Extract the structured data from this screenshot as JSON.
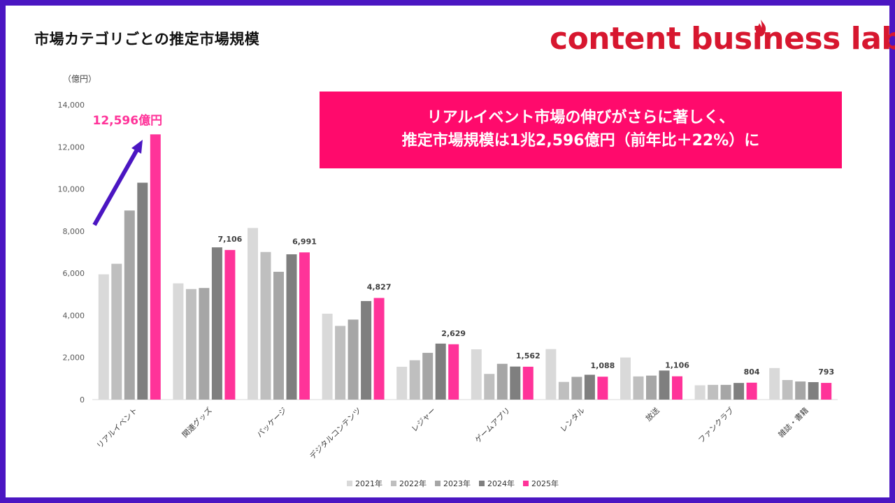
{
  "title": "市場カテゴリごとの推定市場規模",
  "logo": {
    "text": "content business lab",
    "accent_color": "#d7172f"
  },
  "banner": {
    "line1": "リアルイベント市場の伸びがさらに著しく、",
    "line2": "推定市場規模は1兆2,596億円（前年比＋22%）に",
    "background": "#ff0a6c"
  },
  "callout": "12,596億円",
  "chart_data": {
    "type": "bar",
    "unit_label": "（億円）",
    "ylim": [
      0,
      14000
    ],
    "yticks": [
      "0",
      "2,000",
      "4,000",
      "6,000",
      "8,000",
      "10,000",
      "12,000",
      "14,000"
    ],
    "categories": [
      "リアルイベント",
      "関連グッズ",
      "パッケージ",
      "デジタルコンテンツ",
      "レジャー",
      "ゲームアプリ",
      "レンタル",
      "放送",
      "ファンクラブ",
      "雑誌・書籍"
    ],
    "series": [
      {
        "name": "2021年",
        "color": "#d9d9d9",
        "values": [
          5950,
          5520,
          8150,
          4080,
          1560,
          2390,
          2400,
          2000,
          680,
          1500
        ]
      },
      {
        "name": "2022年",
        "color": "#bfbfbf",
        "values": [
          6450,
          5250,
          7010,
          3500,
          1870,
          1220,
          840,
          1100,
          700,
          930
        ]
      },
      {
        "name": "2023年",
        "color": "#a6a6a6",
        "values": [
          8980,
          5300,
          6070,
          3800,
          2220,
          1700,
          1080,
          1140,
          700,
          860
        ]
      },
      {
        "name": "2024年",
        "color": "#7f7f7f",
        "values": [
          10300,
          7230,
          6900,
          4680,
          2660,
          1570,
          1180,
          1380,
          790,
          830
        ]
      },
      {
        "name": "2025年",
        "color": "#ff3399",
        "values": [
          12596,
          7106,
          6991,
          4827,
          2629,
          1562,
          1088,
          1106,
          804,
          793
        ]
      }
    ],
    "data_labels": [
      "",
      "7,106",
      "6,991",
      "4,827",
      "2,629",
      "1,562",
      "1,088",
      "1,106",
      "804",
      "793"
    ],
    "grid": false,
    "legend_position": "bottom"
  },
  "colors": {
    "frame": "#4b16c2",
    "arrow": "#4b16c2",
    "callout": "#ff3399"
  }
}
